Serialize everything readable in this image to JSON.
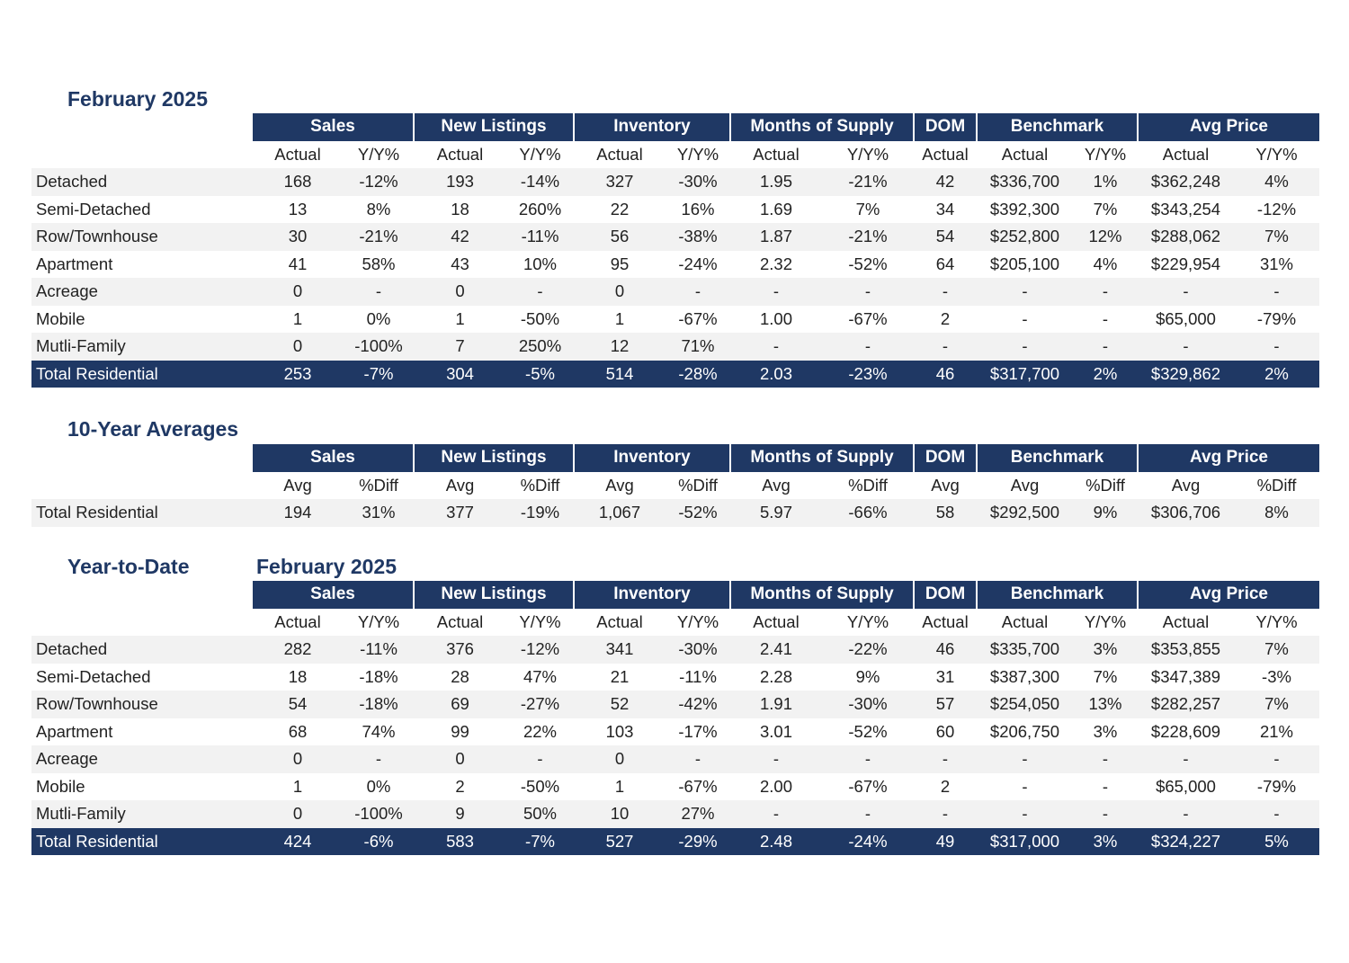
{
  "monthly": {
    "title": "February 2025",
    "groups": [
      "Sales",
      "New Listings",
      "Inventory",
      "Months of Supply",
      "DOM",
      "Benchmark",
      "Avg Price"
    ],
    "subheaders": [
      "Actual",
      "Y/Y%",
      "Actual",
      "Y/Y%",
      "Actual",
      "Y/Y%",
      "Actual",
      "Y/Y%",
      "Actual",
      "Actual",
      "Y/Y%",
      "Actual",
      "Y/Y%"
    ],
    "rows": [
      {
        "label": "Detached",
        "values": [
          "168",
          "-12%",
          "193",
          "-14%",
          "327",
          "-30%",
          "1.95",
          "-21%",
          "42",
          "$336,700",
          "1%",
          "$362,248",
          "4%"
        ]
      },
      {
        "label": "Semi-Detached",
        "values": [
          "13",
          "8%",
          "18",
          "260%",
          "22",
          "16%",
          "1.69",
          "7%",
          "34",
          "$392,300",
          "7%",
          "$343,254",
          "-12%"
        ]
      },
      {
        "label": "Row/Townhouse",
        "values": [
          "30",
          "-21%",
          "42",
          "-11%",
          "56",
          "-38%",
          "1.87",
          "-21%",
          "54",
          "$252,800",
          "12%",
          "$288,062",
          "7%"
        ]
      },
      {
        "label": "Apartment",
        "values": [
          "41",
          "58%",
          "43",
          "10%",
          "95",
          "-24%",
          "2.32",
          "-52%",
          "64",
          "$205,100",
          "4%",
          "$229,954",
          "31%"
        ]
      },
      {
        "label": "Acreage",
        "values": [
          "0",
          "-",
          "0",
          "-",
          "0",
          "-",
          "-",
          "-",
          "-",
          "-",
          "-",
          "-",
          "-"
        ]
      },
      {
        "label": "Mobile",
        "values": [
          "1",
          "0%",
          "1",
          "-50%",
          "1",
          "-67%",
          "1.00",
          "-67%",
          "2",
          "-",
          "-",
          "$65,000",
          "-79%"
        ]
      },
      {
        "label": "Mutli-Family",
        "values": [
          "0",
          "-100%",
          "7",
          "250%",
          "12",
          "71%",
          "-",
          "-",
          "-",
          "-",
          "-",
          "-",
          "-"
        ]
      }
    ],
    "total": {
      "label": "Total Residential",
      "values": [
        "253",
        "-7%",
        "304",
        "-5%",
        "514",
        "-28%",
        "2.03",
        "-23%",
        "46",
        "$317,700",
        "2%",
        "$329,862",
        "2%"
      ]
    }
  },
  "ten_year": {
    "title": "10-Year Averages",
    "groups": [
      "Sales",
      "New Listings",
      "Inventory",
      "Months of Supply",
      "DOM",
      "Benchmark",
      "Avg Price"
    ],
    "subheaders": [
      "Avg",
      "%Diff",
      "Avg",
      "%Diff",
      "Avg",
      "%Diff",
      "Avg",
      "%Diff",
      "Avg",
      "Avg",
      "%Diff",
      "Avg",
      "%Diff"
    ],
    "rows": [
      {
        "label": "Total Residential",
        "values": [
          "194",
          "31%",
          "377",
          "-19%",
          "1,067",
          "-52%",
          "5.97",
          "-66%",
          "58",
          "$292,500",
          "9%",
          "$306,706",
          "8%"
        ]
      }
    ]
  },
  "ytd": {
    "title": "Year-to-Date",
    "subtitle": "February 2025",
    "groups": [
      "Sales",
      "New Listings",
      "Inventory",
      "Months of Supply",
      "DOM",
      "Benchmark",
      "Avg Price"
    ],
    "subheaders": [
      "Actual",
      "Y/Y%",
      "Actual",
      "Y/Y%",
      "Actual",
      "Y/Y%",
      "Actual",
      "Y/Y%",
      "Actual",
      "Actual",
      "Y/Y%",
      "Actual",
      "Y/Y%"
    ],
    "rows": [
      {
        "label": "Detached",
        "values": [
          "282",
          "-11%",
          "376",
          "-12%",
          "341",
          "-30%",
          "2.41",
          "-22%",
          "46",
          "$335,700",
          "3%",
          "$353,855",
          "7%"
        ]
      },
      {
        "label": "Semi-Detached",
        "values": [
          "18",
          "-18%",
          "28",
          "47%",
          "21",
          "-11%",
          "2.28",
          "9%",
          "31",
          "$387,300",
          "7%",
          "$347,389",
          "-3%"
        ]
      },
      {
        "label": "Row/Townhouse",
        "values": [
          "54",
          "-18%",
          "69",
          "-27%",
          "52",
          "-42%",
          "1.91",
          "-30%",
          "57",
          "$254,050",
          "13%",
          "$282,257",
          "7%"
        ]
      },
      {
        "label": "Apartment",
        "values": [
          "68",
          "74%",
          "99",
          "22%",
          "103",
          "-17%",
          "3.01",
          "-52%",
          "60",
          "$206,750",
          "3%",
          "$228,609",
          "21%"
        ]
      },
      {
        "label": "Acreage",
        "values": [
          "0",
          "-",
          "0",
          "-",
          "0",
          "-",
          "-",
          "-",
          "-",
          "-",
          "-",
          "-",
          "-"
        ]
      },
      {
        "label": "Mobile",
        "values": [
          "1",
          "0%",
          "2",
          "-50%",
          "1",
          "-67%",
          "2.00",
          "-67%",
          "2",
          "-",
          "-",
          "$65,000",
          "-79%"
        ]
      },
      {
        "label": "Mutli-Family",
        "values": [
          "0",
          "-100%",
          "9",
          "50%",
          "10",
          "27%",
          "-",
          "-",
          "-",
          "-",
          "-",
          "-",
          "-"
        ]
      }
    ],
    "total": {
      "label": "Total Residential",
      "values": [
        "424",
        "-6%",
        "583",
        "-7%",
        "527",
        "-29%",
        "2.48",
        "-24%",
        "49",
        "$317,000",
        "3%",
        "$324,227",
        "5%"
      ]
    }
  }
}
